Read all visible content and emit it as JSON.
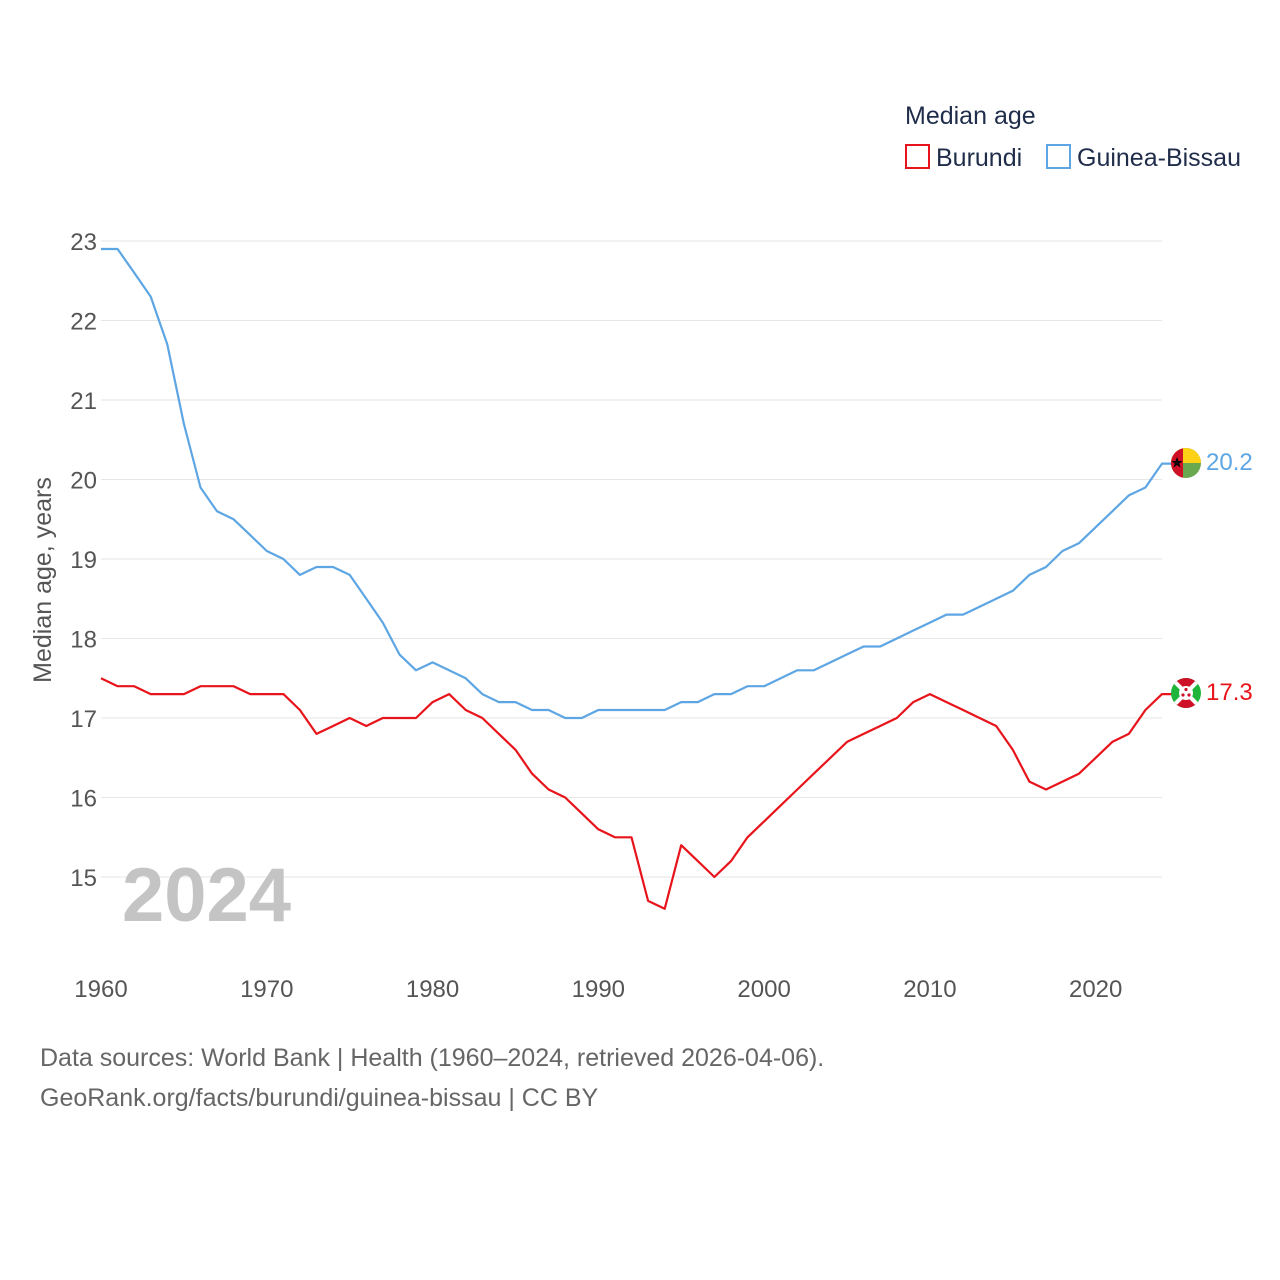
{
  "chart_data": {
    "type": "line",
    "legend_title": "Median age",
    "ylabel": "Median age, years",
    "xlim": [
      1960,
      2024
    ],
    "ylim": [
      14.0,
      23.0
    ],
    "x_ticks": [
      1960,
      1970,
      1980,
      1990,
      2000,
      2010,
      2020
    ],
    "y_ticks": [
      15,
      16,
      17,
      18,
      19,
      20,
      21,
      22,
      23
    ],
    "year_label": "2024",
    "x": [
      1960,
      1961,
      1962,
      1963,
      1964,
      1965,
      1966,
      1967,
      1968,
      1969,
      1970,
      1971,
      1972,
      1973,
      1974,
      1975,
      1976,
      1977,
      1978,
      1979,
      1980,
      1981,
      1982,
      1983,
      1984,
      1985,
      1986,
      1987,
      1988,
      1989,
      1990,
      1991,
      1992,
      1993,
      1994,
      1995,
      1996,
      1997,
      1998,
      1999,
      2000,
      2001,
      2002,
      2003,
      2004,
      2005,
      2006,
      2007,
      2008,
      2009,
      2010,
      2011,
      2012,
      2013,
      2014,
      2015,
      2016,
      2017,
      2018,
      2019,
      2020,
      2021,
      2022,
      2023,
      2024
    ],
    "series": [
      {
        "name": "Burundi",
        "color": "#e8141b",
        "end_label": "17.3",
        "flag": "burundi-flag-icon",
        "values": [
          17.5,
          17.4,
          17.4,
          17.3,
          17.3,
          17.3,
          17.4,
          17.4,
          17.4,
          17.3,
          17.3,
          17.3,
          17.1,
          16.8,
          16.9,
          17.0,
          16.9,
          17.0,
          17.0,
          17.0,
          17.2,
          17.3,
          17.1,
          17.0,
          16.8,
          16.6,
          16.3,
          16.1,
          16.0,
          15.8,
          15.6,
          15.5,
          15.5,
          14.7,
          14.6,
          15.4,
          15.2,
          15.0,
          15.2,
          15.5,
          15.7,
          15.9,
          16.1,
          16.3,
          16.5,
          16.7,
          16.8,
          16.9,
          17.0,
          17.2,
          17.3,
          17.2,
          17.1,
          17.0,
          16.9,
          16.6,
          16.2,
          16.1,
          16.2,
          16.3,
          16.5,
          16.7,
          16.8,
          17.1,
          17.3
        ]
      },
      {
        "name": "Guinea-Bissau",
        "color": "#5da6e3",
        "end_label": "20.2",
        "flag": "guinea-bissau-flag-icon",
        "values": [
          22.9,
          22.9,
          22.6,
          22.3,
          21.7,
          20.7,
          19.9,
          19.6,
          19.5,
          19.3,
          19.1,
          19.0,
          18.8,
          18.9,
          18.9,
          18.8,
          18.5,
          18.2,
          17.8,
          17.6,
          17.7,
          17.6,
          17.5,
          17.3,
          17.2,
          17.2,
          17.1,
          17.1,
          17.0,
          17.0,
          17.1,
          17.1,
          17.1,
          17.1,
          17.1,
          17.2,
          17.2,
          17.3,
          17.3,
          17.4,
          17.4,
          17.5,
          17.6,
          17.6,
          17.7,
          17.8,
          17.9,
          17.9,
          18.0,
          18.1,
          18.2,
          18.3,
          18.3,
          18.4,
          18.5,
          18.6,
          18.8,
          18.9,
          19.1,
          19.2,
          19.4,
          19.6,
          19.8,
          19.9,
          20.2
        ]
      }
    ]
  },
  "footer": {
    "line1": "Data sources: World Bank | Health (1960–2024, retrieved 2026-04-06).",
    "line2": "GeoRank.org/facts/burundi/guinea-bissau | CC BY"
  }
}
